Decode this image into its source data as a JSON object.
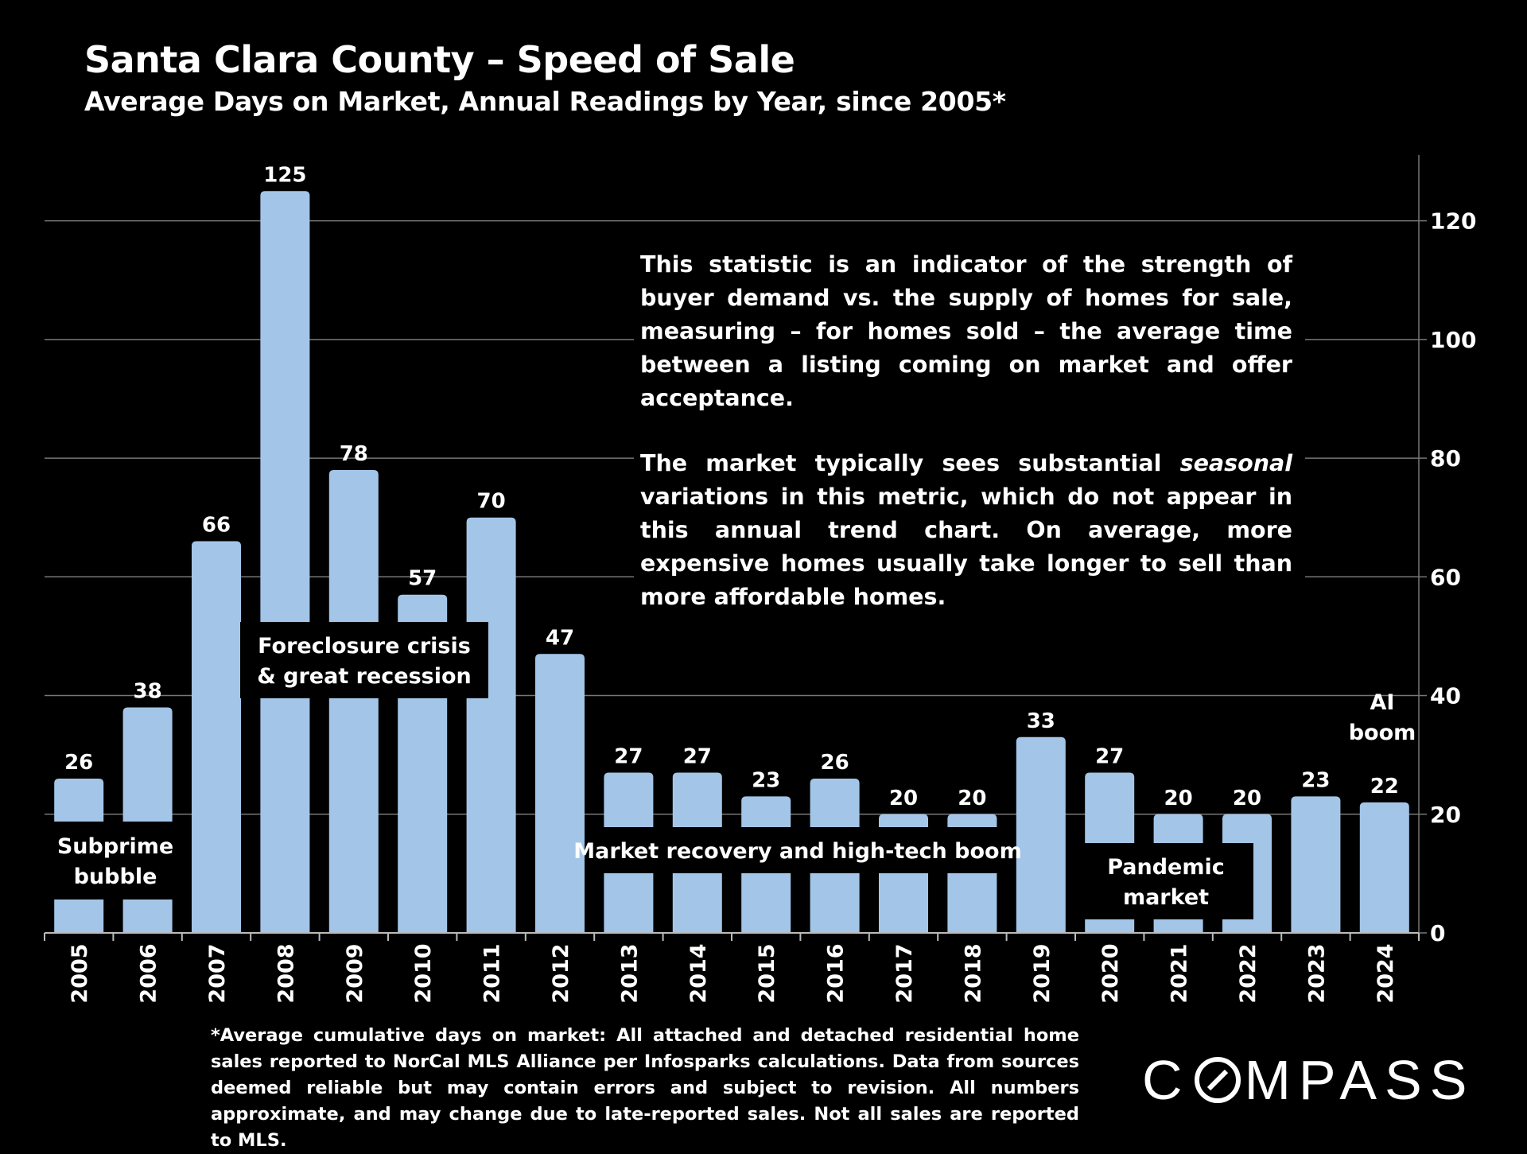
{
  "header": {
    "title": "Santa Clara County – Speed of Sale",
    "subtitle": "Average Days on Market, Annual Readings by Year, since 2005*"
  },
  "note": {
    "paragraph1": "This statistic is an indicator of the strength of buyer demand vs. the supply of homes for sale, measuring – for homes sold – the average time between a listing coming on market and offer acceptance.",
    "paragraph2_before": "The market typically sees substantial ",
    "paragraph2_emphasis": "seasonal",
    "paragraph2_after": " variations in this metric, which do not appear in this annual trend chart. On average, more expensive homes usually take longer to sell than more affordable homes."
  },
  "footnote": "*Average cumulative days on market: All attached and detached residential home sales reported to NorCal MLS Alliance per Infosparks calculations. Data from sources deemed reliable but may contain errors and subject to revision. All numbers approximate, and may change due to late-reported sales. Not all sales are reported to MLS.",
  "logo": {
    "left": "C",
    "right": "MPASS"
  },
  "colors": {
    "background": "#000000",
    "bar": "#a3c6e8",
    "text": "#ffffff",
    "grid": "#777777"
  },
  "chart_data": {
    "type": "bar",
    "categories": [
      "2005",
      "2006",
      "2007",
      "2008",
      "2009",
      "2010",
      "2011",
      "2012",
      "2013",
      "2014",
      "2015",
      "2016",
      "2017",
      "2018",
      "2019",
      "2020",
      "2021",
      "2022",
      "2023",
      "2024"
    ],
    "values": [
      26,
      38,
      66,
      125,
      78,
      57,
      70,
      47,
      27,
      27,
      23,
      26,
      20,
      20,
      33,
      27,
      20,
      20,
      23,
      22
    ],
    "ylim": [
      0,
      130
    ],
    "yticks": [
      0,
      20,
      40,
      60,
      80,
      100,
      120
    ],
    "y_axis_side": "right",
    "grid": true,
    "data_labels": true,
    "annotations": [
      {
        "lines": [
          "Subprime",
          "bubble"
        ],
        "over": [
          "2005",
          "2006"
        ]
      },
      {
        "lines": [
          "Foreclosure crisis",
          "& great recession"
        ],
        "over": [
          "2008",
          "2010"
        ]
      },
      {
        "lines": [
          "Market recovery and high-tech boom"
        ],
        "over": [
          "2013",
          "2018"
        ]
      },
      {
        "lines": [
          "Pandemic",
          "market"
        ],
        "over": [
          "2020",
          "2021"
        ]
      },
      {
        "lines": [
          "AI",
          "boom"
        ],
        "over": [
          "2024"
        ]
      }
    ]
  }
}
